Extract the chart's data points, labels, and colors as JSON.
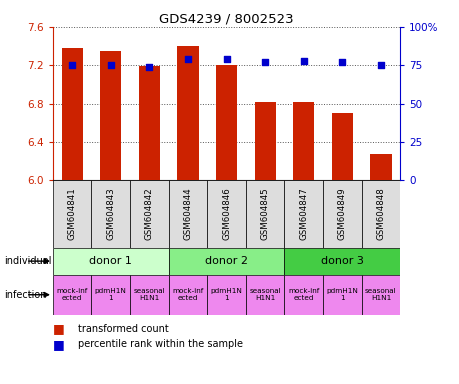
{
  "title": "GDS4239 / 8002523",
  "samples": [
    "GSM604841",
    "GSM604843",
    "GSM604842",
    "GSM604844",
    "GSM604846",
    "GSM604845",
    "GSM604847",
    "GSM604849",
    "GSM604848"
  ],
  "bar_values": [
    7.38,
    7.35,
    7.19,
    7.4,
    7.2,
    6.82,
    6.82,
    6.7,
    6.28
  ],
  "percentile_values": [
    75,
    75,
    74,
    79,
    79,
    77,
    78,
    77,
    75
  ],
  "ylim_left": [
    6.0,
    7.6
  ],
  "ylim_right": [
    0,
    100
  ],
  "yticks_left": [
    6.0,
    6.4,
    6.8,
    7.2,
    7.6
  ],
  "yticks_right": [
    0,
    25,
    50,
    75,
    100
  ],
  "bar_color": "#cc2200",
  "dot_color": "#0000cc",
  "dot_marker": "s",
  "donors": [
    {
      "label": "donor 1",
      "start": 0,
      "end": 3,
      "color": "#ccffcc"
    },
    {
      "label": "donor 2",
      "start": 3,
      "end": 6,
      "color": "#88ee88"
    },
    {
      "label": "donor 3",
      "start": 6,
      "end": 9,
      "color": "#44cc44"
    }
  ],
  "infection_labels": [
    "mock-inf\nected",
    "pdmH1N\n1",
    "seasonal\nH1N1",
    "mock-inf\nected",
    "pdmH1N\n1",
    "seasonal\nH1N1",
    "mock-inf\nected",
    "pdmH1N\n1",
    "seasonal\nH1N1"
  ],
  "infection_color": "#ee88ee",
  "sample_cell_color": "#dddddd",
  "legend_bar_label": "transformed count",
  "legend_dot_label": "percentile rank within the sample",
  "background_color": "#ffffff",
  "grid_color": "#555555",
  "left_axis_color": "#cc2200",
  "right_axis_color": "#0000cc"
}
